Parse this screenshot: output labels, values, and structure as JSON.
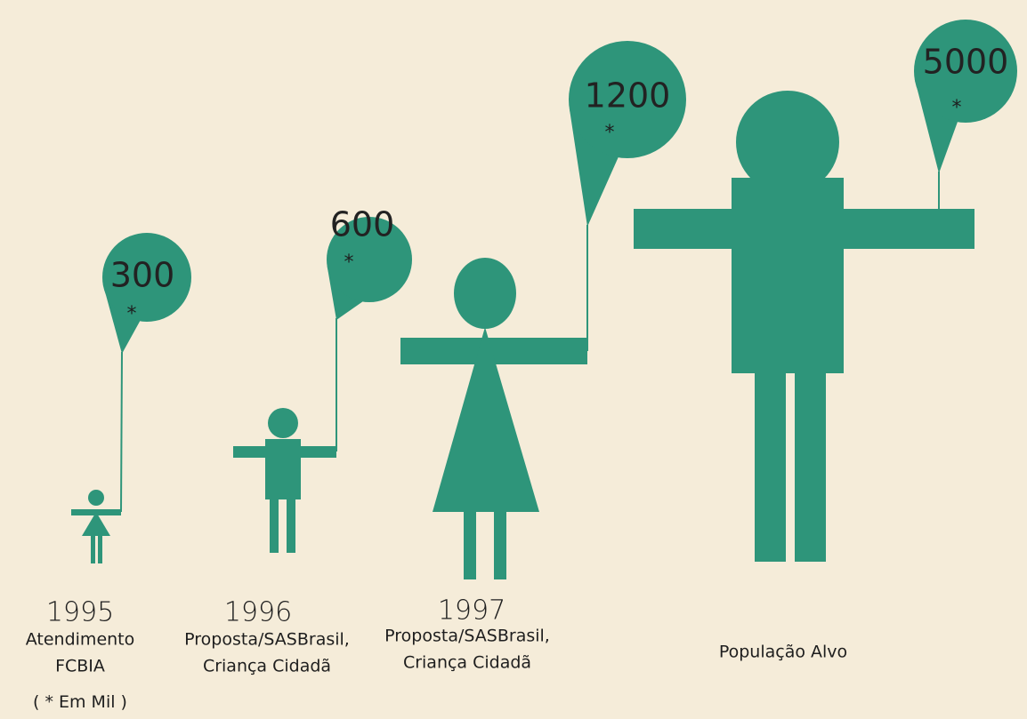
{
  "chart_data": {
    "type": "pictograph",
    "categories": [
      "1995",
      "1996",
      "1997",
      null
    ],
    "descriptions": [
      [
        "Atendimento",
        "FCBIA"
      ],
      [
        "Proposta/SASBrasil,",
        "Criança Cidadã"
      ],
      [
        "Proposta/SASBrasil,",
        "Criança Cidadã"
      ],
      [
        "População Alvo"
      ]
    ],
    "values": [
      300,
      600,
      1200,
      5000
    ],
    "marker": "*",
    "note": "( * Em Mil )",
    "color": "#2e957a"
  }
}
